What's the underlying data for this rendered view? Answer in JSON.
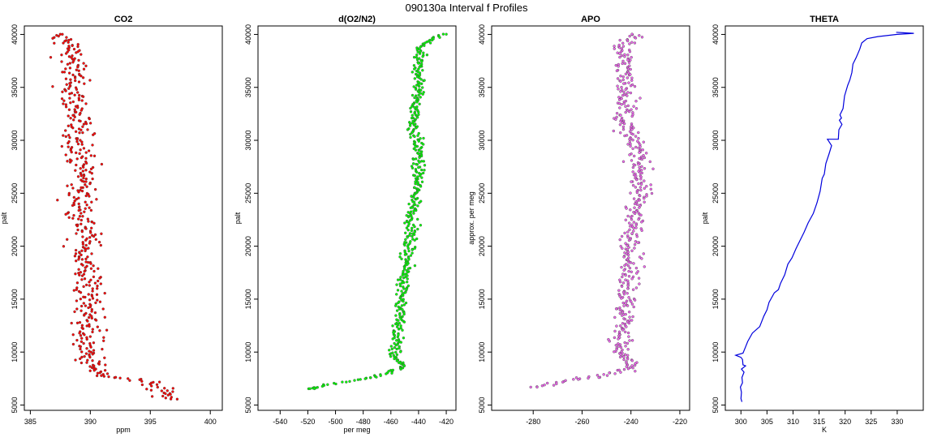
{
  "figure": {
    "title": "090130a   Interval f Profiles"
  },
  "chart_data": [
    {
      "type": "scatter",
      "title": "CO2",
      "xlabel": "ppm",
      "ylabel": "palt",
      "xlim": [
        384.5,
        401
      ],
      "ylim": [
        4500,
        40800
      ],
      "xticks": [
        385,
        390,
        395,
        400
      ],
      "yticks": [
        5000,
        10000,
        15000,
        20000,
        25000,
        30000,
        35000,
        40000
      ],
      "color": "#ff0000",
      "profile": [
        [
          387.0,
          40000
        ],
        [
          388.3,
          39000
        ],
        [
          388.4,
          38000
        ],
        [
          388.6,
          37000
        ],
        [
          388.5,
          36000
        ],
        [
          388.4,
          35000
        ],
        [
          388.6,
          34000
        ],
        [
          388.8,
          33000
        ],
        [
          388.9,
          32000
        ],
        [
          388.7,
          31000
        ],
        [
          389.0,
          30000
        ],
        [
          389.2,
          29000
        ],
        [
          389.3,
          28000
        ],
        [
          389.4,
          27000
        ],
        [
          389.3,
          26000
        ],
        [
          389.1,
          25000
        ],
        [
          389.2,
          24000
        ],
        [
          389.3,
          23000
        ],
        [
          389.5,
          22000
        ],
        [
          389.6,
          21000
        ],
        [
          389.5,
          20000
        ],
        [
          389.6,
          19000
        ],
        [
          389.5,
          18000
        ],
        [
          389.8,
          17000
        ],
        [
          389.9,
          16000
        ],
        [
          389.7,
          15000
        ],
        [
          389.9,
          14000
        ],
        [
          390.0,
          13000
        ],
        [
          389.8,
          12000
        ],
        [
          389.7,
          11000
        ],
        [
          389.5,
          10000
        ],
        [
          389.9,
          9700
        ],
        [
          390.0,
          9000
        ],
        [
          390.1,
          8700
        ],
        [
          390.5,
          8200
        ],
        [
          391.0,
          7700
        ],
        [
          393.0,
          7500
        ],
        [
          395.0,
          6900
        ],
        [
          396.0,
          6500
        ],
        [
          396.2,
          6000
        ],
        [
          396.0,
          5500
        ]
      ],
      "spread": 1.2
    },
    {
      "type": "scatter",
      "title": "d(O2/N2)",
      "xlabel": "per meg",
      "ylabel": "palt",
      "xlim": [
        -556,
        -413
      ],
      "ylim": [
        4500,
        40800
      ],
      "xticks": [
        -540,
        -520,
        -500,
        -480,
        -460,
        -440,
        -420
      ],
      "yticks": [
        5000,
        10000,
        15000,
        20000,
        25000,
        30000,
        35000,
        40000
      ],
      "color": "#00ff00",
      "profile": [
        [
          -423,
          40000
        ],
        [
          -438,
          39000
        ],
        [
          -440,
          38000
        ],
        [
          -441,
          37000
        ],
        [
          -439,
          36000
        ],
        [
          -440,
          35000
        ],
        [
          -441,
          34000
        ],
        [
          -442,
          33000
        ],
        [
          -443,
          32000
        ],
        [
          -444,
          31000
        ],
        [
          -441,
          30000
        ],
        [
          -440,
          29000
        ],
        [
          -441,
          28000
        ],
        [
          -440,
          27000
        ],
        [
          -441,
          26000
        ],
        [
          -442,
          25000
        ],
        [
          -443,
          24000
        ],
        [
          -444,
          23000
        ],
        [
          -445,
          22000
        ],
        [
          -446,
          21000
        ],
        [
          -447,
          20000
        ],
        [
          -448,
          19000
        ],
        [
          -449,
          18000
        ],
        [
          -450,
          17000
        ],
        [
          -451,
          16000
        ],
        [
          -452,
          15000
        ],
        [
          -453,
          14000
        ],
        [
          -454,
          13000
        ],
        [
          -455,
          12000
        ],
        [
          -456,
          11000
        ],
        [
          -457,
          10000
        ],
        [
          -458,
          9700
        ],
        [
          -455,
          9000
        ],
        [
          -452,
          8700
        ],
        [
          -458,
          8200
        ],
        [
          -470,
          7700
        ],
        [
          -480,
          7500
        ],
        [
          -505,
          6900
        ],
        [
          -515,
          6600
        ],
        [
          -520,
          6500
        ]
      ],
      "spread": 4
    },
    {
      "type": "scatter",
      "title": "APO",
      "xlabel": "",
      "ylabel": "approx. per meg",
      "xlim": [
        -297,
        -216
      ],
      "ylim": [
        4500,
        40800
      ],
      "xticks": [
        -280,
        -260,
        -240,
        -220
      ],
      "yticks": [
        5000,
        10000,
        15000,
        20000,
        25000,
        30000,
        35000,
        40000
      ],
      "color": "#ee66ee",
      "profile": [
        [
          -236,
          40000
        ],
        [
          -244,
          39000
        ],
        [
          -243,
          38000
        ],
        [
          -242,
          37000
        ],
        [
          -243,
          36000
        ],
        [
          -242,
          35000
        ],
        [
          -241,
          34000
        ],
        [
          -242,
          33000
        ],
        [
          -243,
          32000
        ],
        [
          -242,
          31000
        ],
        [
          -240,
          30000
        ],
        [
          -236,
          29000
        ],
        [
          -237,
          28000
        ],
        [
          -236,
          27000
        ],
        [
          -237,
          26000
        ],
        [
          -236,
          25000
        ],
        [
          -237,
          24000
        ],
        [
          -238,
          23000
        ],
        [
          -239,
          22000
        ],
        [
          -240,
          21000
        ],
        [
          -239,
          20000
        ],
        [
          -240,
          19000
        ],
        [
          -241,
          18000
        ],
        [
          -240,
          17000
        ],
        [
          -241,
          16000
        ],
        [
          -242,
          15000
        ],
        [
          -243,
          14000
        ],
        [
          -242,
          13000
        ],
        [
          -243,
          12000
        ],
        [
          -244,
          11000
        ],
        [
          -245,
          10000
        ],
        [
          -243,
          9700
        ],
        [
          -240,
          9000
        ],
        [
          -240,
          8700
        ],
        [
          -245,
          8200
        ],
        [
          -255,
          7700
        ],
        [
          -262,
          7500
        ],
        [
          -275,
          6900
        ],
        [
          -282,
          6600
        ]
      ],
      "spread": 4
    },
    {
      "type": "line",
      "title": "THETA",
      "xlabel": "K",
      "ylabel": "palt",
      "xlim": [
        297,
        335
      ],
      "ylim": [
        4500,
        40800
      ],
      "xticks": [
        300,
        305,
        310,
        315,
        320,
        325,
        330
      ],
      "yticks": [
        5000,
        10000,
        15000,
        20000,
        25000,
        30000,
        35000,
        40000
      ],
      "color": "#0000dd",
      "points": [
        [
          300.2,
          5300
        ],
        [
          300.0,
          5600
        ],
        [
          300.1,
          6200
        ],
        [
          299.9,
          6700
        ],
        [
          300.3,
          7100
        ],
        [
          300.2,
          7600
        ],
        [
          300.6,
          8100
        ],
        [
          300.1,
          8400
        ],
        [
          300.9,
          8700
        ],
        [
          300.4,
          8800
        ],
        [
          300.3,
          9300
        ],
        [
          300.0,
          9500
        ],
        [
          299.0,
          9700
        ],
        [
          300.4,
          9900
        ],
        [
          300.9,
          10500
        ],
        [
          301.3,
          11000
        ],
        [
          302.2,
          11800
        ],
        [
          303.6,
          12400
        ],
        [
          304.4,
          13400
        ],
        [
          305.0,
          14000
        ],
        [
          305.4,
          14700
        ],
        [
          306.4,
          15600
        ],
        [
          307.2,
          15900
        ],
        [
          307.6,
          16500
        ],
        [
          308.4,
          17300
        ],
        [
          309.0,
          18300
        ],
        [
          309.8,
          18900
        ],
        [
          310.6,
          19800
        ],
        [
          311.3,
          20500
        ],
        [
          312.1,
          21300
        ],
        [
          312.9,
          22200
        ],
        [
          313.9,
          23100
        ],
        [
          314.6,
          24100
        ],
        [
          315.2,
          25200
        ],
        [
          315.6,
          26400
        ],
        [
          316.0,
          26800
        ],
        [
          316.3,
          27800
        ],
        [
          316.9,
          28700
        ],
        [
          317.4,
          29500
        ],
        [
          316.6,
          30100
        ],
        [
          318.7,
          30100
        ],
        [
          318.8,
          31000
        ],
        [
          319.4,
          31500
        ],
        [
          318.9,
          31900
        ],
        [
          319.3,
          32100
        ],
        [
          319.0,
          32400
        ],
        [
          319.6,
          33000
        ],
        [
          319.9,
          34200
        ],
        [
          320.5,
          35200
        ],
        [
          320.9,
          35700
        ],
        [
          321.3,
          36400
        ],
        [
          321.5,
          37200
        ],
        [
          322.1,
          37800
        ],
        [
          322.8,
          38600
        ],
        [
          323.2,
          39200
        ],
        [
          324.2,
          39600
        ],
        [
          326.3,
          39800
        ],
        [
          330.0,
          40000
        ],
        [
          333.2,
          40100
        ],
        [
          331.5,
          40150
        ],
        [
          329.8,
          40200
        ]
      ]
    }
  ]
}
